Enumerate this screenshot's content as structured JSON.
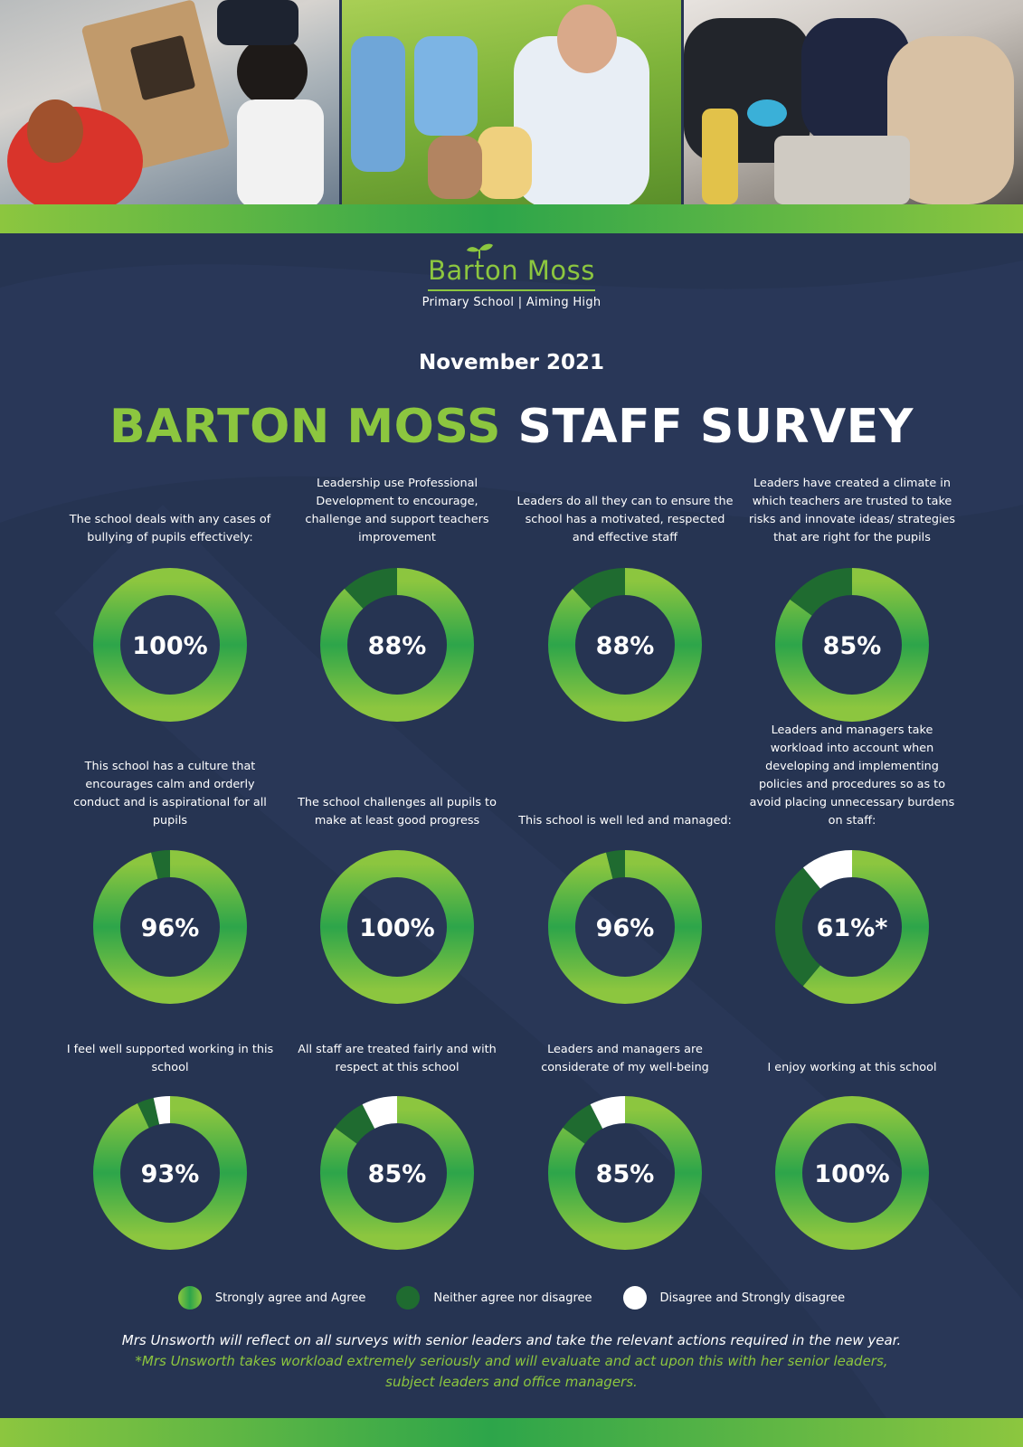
{
  "header": {
    "logo_name": "Barton Moss",
    "logo_sub": "Primary School | Aiming High",
    "date": "November 2021",
    "title_green": "BARTON MOSS",
    "title_white": "STAFF SURVEY"
  },
  "chart_data": {
    "type": "pie",
    "series_names": [
      "Strongly agree and Agree",
      "Neither agree nor disagree",
      "Disagree and Strongly disagree"
    ],
    "colors": {
      "agree_light": "#8cc63f",
      "agree_dark": "#2da54a",
      "neither": "#1f6b30",
      "disagree": "#ffffff"
    },
    "charts": [
      {
        "question": "The school deals with any cases of bullying of pupils effectively:",
        "label": "100%",
        "values": [
          100,
          0,
          0
        ]
      },
      {
        "question": "Leadership use Professional Development to encourage, challenge and support teachers improvement",
        "label": "88%",
        "values": [
          88,
          12,
          0
        ]
      },
      {
        "question": "Leaders do all they can to ensure the school has a motivated, respected and effective staff",
        "label": "88%",
        "values": [
          88,
          12,
          0
        ]
      },
      {
        "question": "Leaders have created a climate in which teachers are trusted to take risks and innovate ideas/ strategies that are right for the pupils",
        "label": "85%",
        "values": [
          85,
          15,
          0
        ]
      },
      {
        "question": "This school has a culture that encourages calm and orderly conduct and is aspirational for all pupils",
        "label": "96%",
        "values": [
          96,
          4,
          0
        ]
      },
      {
        "question": "The school challenges all pupils to make at least good progress",
        "label": "100%",
        "values": [
          100,
          0,
          0
        ]
      },
      {
        "question": "This school is well led and managed:",
        "label": "96%",
        "values": [
          96,
          4,
          0
        ]
      },
      {
        "question": "Leaders and managers take workload into account when developing and implementing policies and procedures so as to avoid placing unnecessary burdens on staff:",
        "label": "61%*",
        "values": [
          61,
          28,
          11
        ]
      },
      {
        "question": "I feel well supported working in this school",
        "label": "93%",
        "values": [
          93,
          3.5,
          3.5
        ]
      },
      {
        "question": "All staff are treated fairly and with respect at this school",
        "label": "85%",
        "values": [
          85,
          7.5,
          7.5
        ]
      },
      {
        "question": "Leaders and managers are considerate of my well-being",
        "label": "85%",
        "values": [
          85,
          7.5,
          7.5
        ]
      },
      {
        "question": "I enjoy working at this school",
        "label": "100%",
        "values": [
          100,
          0,
          0
        ]
      }
    ]
  },
  "legend": {
    "agree": "Strongly agree and Agree",
    "neither": "Neither agree nor disagree",
    "disagree": "Disagree and Strongly disagree"
  },
  "footer": {
    "line1": "Mrs Unsworth will reflect on all surveys with senior leaders and take the relevant actions required in the new year.",
    "line2": "*Mrs Unsworth takes workload extremely seriously and will evaluate and act upon this with her senior leaders,",
    "line3": "subject leaders and office managers."
  }
}
